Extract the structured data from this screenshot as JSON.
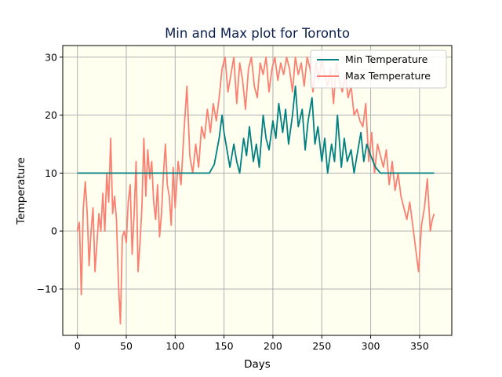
{
  "colors": {
    "plot_background": "#fffff0",
    "min_line": "#008080",
    "max_line": "#fa8072",
    "title": "#0b1f4a",
    "grid": "#b0b0b0"
  },
  "chart_data": {
    "type": "line",
    "title": "Min and Max plot for Toronto",
    "xlabel": "Days",
    "ylabel": "Temperature",
    "xlim": [
      -15,
      383
    ],
    "ylim": [
      -18,
      32
    ],
    "xticks": [
      0,
      50,
      100,
      150,
      200,
      250,
      300,
      350
    ],
    "yticks": [
      -10,
      0,
      10,
      20,
      30
    ],
    "xtick_labels": [
      "0",
      "50",
      "100",
      "150",
      "200",
      "250",
      "300",
      "350"
    ],
    "ytick_labels": [
      "−10",
      "0",
      "10",
      "20",
      "30"
    ],
    "grid": true,
    "legend_position": "top-right",
    "series": [
      {
        "name": "Min Temperature",
        "color": "#008080",
        "x": [
          0,
          135,
          140,
          145,
          148,
          150,
          153,
          156,
          160,
          163,
          166,
          170,
          173,
          176,
          180,
          183,
          186,
          190,
          193,
          196,
          200,
          203,
          206,
          210,
          213,
          216,
          220,
          223,
          226,
          230,
          233,
          236,
          240,
          243,
          246,
          250,
          253,
          256,
          260,
          263,
          266,
          270,
          273,
          276,
          280,
          283,
          286,
          290,
          293,
          296,
          300,
          305,
          310,
          365
        ],
        "y": [
          10,
          10,
          11.5,
          16,
          20,
          17,
          14,
          11,
          15,
          12,
          10,
          16,
          13,
          18,
          12,
          15,
          11,
          20,
          16,
          14,
          19,
          16,
          22,
          17,
          21,
          15,
          20,
          25,
          18,
          21,
          14,
          19,
          23,
          15,
          18,
          12,
          16,
          10,
          15,
          12,
          20,
          11,
          16,
          12,
          14,
          10,
          13,
          17,
          12,
          15,
          13,
          11,
          10,
          10
        ]
      },
      {
        "name": "Max Temperature",
        "color": "#fa8072",
        "x": [
          0,
          2,
          4,
          6,
          8,
          10,
          12,
          14,
          16,
          18,
          20,
          22,
          24,
          26,
          28,
          30,
          32,
          34,
          36,
          38,
          40,
          42,
          44,
          46,
          48,
          50,
          52,
          54,
          56,
          58,
          60,
          62,
          64,
          66,
          68,
          70,
          72,
          74,
          76,
          78,
          80,
          82,
          84,
          86,
          88,
          90,
          92,
          94,
          96,
          98,
          100,
          103,
          106,
          109,
          112,
          115,
          118,
          121,
          124,
          127,
          130,
          133,
          136,
          139,
          142,
          145,
          148,
          151,
          154,
          157,
          160,
          163,
          166,
          169,
          172,
          175,
          178,
          181,
          184,
          187,
          190,
          193,
          196,
          199,
          202,
          205,
          208,
          211,
          214,
          217,
          220,
          223,
          226,
          229,
          232,
          235,
          238,
          241,
          244,
          247,
          250,
          253,
          256,
          259,
          262,
          265,
          268,
          271,
          274,
          277,
          280,
          283,
          286,
          289,
          292,
          295,
          298,
          301,
          304,
          307,
          310,
          313,
          316,
          319,
          322,
          325,
          328,
          331,
          334,
          337,
          340,
          343,
          346,
          349,
          352,
          355,
          358,
          361,
          363,
          365
        ],
        "y": [
          0,
          1.5,
          -11,
          4,
          8.5,
          3,
          -6,
          0,
          4,
          -7,
          -2,
          3,
          0,
          6.5,
          0,
          10,
          5,
          16,
          3,
          6,
          2,
          -9,
          -16,
          -1,
          0,
          -2,
          5,
          8,
          -4,
          3,
          12,
          -7,
          -2,
          4,
          16,
          6,
          14,
          9,
          12,
          5,
          2,
          8,
          -1,
          3,
          10,
          15,
          8,
          6,
          1,
          11,
          4,
          12,
          8,
          17,
          25,
          13,
          10,
          15,
          11,
          18,
          16,
          21,
          17,
          22,
          19,
          23,
          28,
          30,
          24,
          27,
          30,
          22,
          29,
          26,
          21,
          28,
          30,
          25,
          23,
          29,
          27,
          30,
          24,
          28,
          30,
          26,
          29,
          27,
          30,
          28,
          24,
          30,
          27,
          29,
          25,
          30,
          28,
          24,
          29,
          26,
          30,
          27,
          25,
          28,
          22,
          29,
          26,
          24,
          27,
          23,
          25,
          20,
          21,
          19,
          18,
          22,
          12,
          17,
          10,
          15,
          13,
          11,
          14,
          8,
          12,
          7,
          10,
          6,
          4,
          2,
          5,
          1,
          -3,
          -7,
          1,
          4,
          9,
          0,
          2,
          3
        ]
      }
    ]
  }
}
